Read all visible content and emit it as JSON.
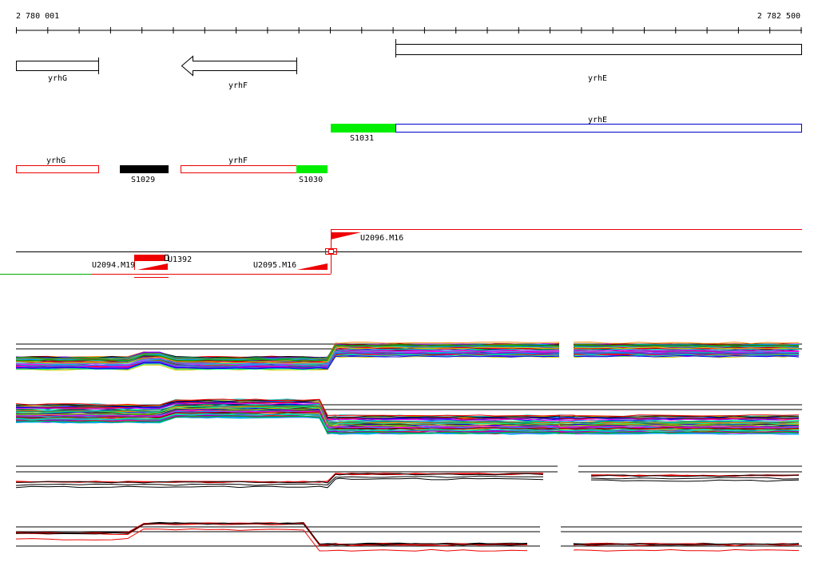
{
  "ruler": {
    "start_label": "2 780 001",
    "end_label": "2 782 500"
  },
  "genes": [
    {
      "name": "yrhG",
      "strand": "+"
    },
    {
      "name": "yrhF",
      "strand": "-"
    },
    {
      "name": "yrhE",
      "strand": "+"
    }
  ],
  "segment_labels": {
    "yrhE_track2": "yrhE",
    "S1031": "S1031",
    "yrhG_track3": "yrhG",
    "S1029": "S1029",
    "yrhF_track3": "yrhF",
    "S1030": "S1030"
  },
  "features": {
    "u2096": "U2096.M16",
    "u2094": "U2094.M19",
    "u1392": "U1392",
    "u2095": "U2095.M16"
  },
  "colors": {
    "segment_green": "#00ee00",
    "segment_black": "#000000",
    "segment_red_outline": "#ee0000",
    "segment_blue_outline": "#0000cc",
    "feature_red": "#ee0000"
  }
}
